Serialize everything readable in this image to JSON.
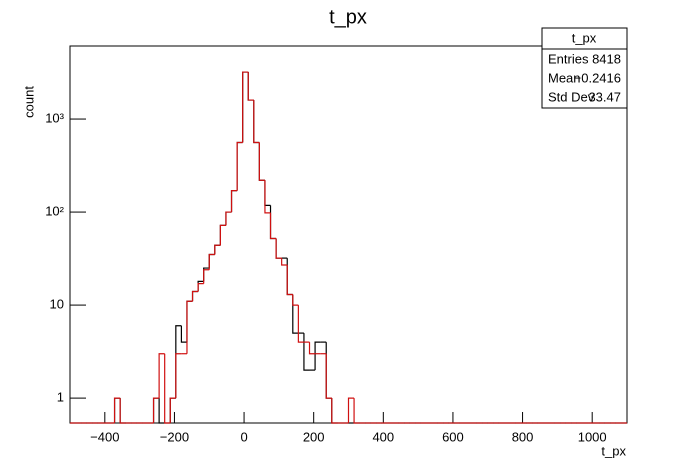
{
  "chart_data": {
    "type": "histogram",
    "title": "t_px",
    "x_label": "t_px",
    "y_label": "count",
    "log_y": true,
    "xlim": [
      -500,
      1100
    ],
    "ylim": [
      0.54,
      6100
    ],
    "xticks": [
      {
        "value": -400,
        "label": "−400"
      },
      {
        "value": -200,
        "label": "−200"
      },
      0,
      200,
      400,
      600,
      800,
      1000
    ],
    "yticks": [
      1,
      10,
      {
        "value": 100,
        "label": "10²"
      },
      {
        "value": 1000,
        "label": "10³"
      }
    ],
    "bins": [
      -500,
      -484,
      -468,
      -452,
      -436,
      -420,
      -404,
      -388,
      -372,
      -356,
      -340,
      -324,
      -308,
      -292,
      -276,
      -260,
      -244,
      -228,
      -212,
      -196,
      -180,
      -164,
      -148,
      -132,
      -116,
      -100,
      -84,
      -68,
      -52,
      -36,
      -20,
      -4,
      12,
      28,
      44,
      60,
      76,
      92,
      108,
      124,
      140,
      156,
      172,
      188,
      204,
      220,
      236,
      252,
      268,
      284,
      300,
      316,
      332,
      348,
      364,
      380,
      396,
      412,
      428,
      444,
      460,
      476,
      492,
      508,
      524,
      540,
      556,
      572,
      588,
      604,
      620,
      636,
      652,
      668,
      684,
      700,
      716,
      732,
      748,
      764,
      780,
      796,
      812,
      828,
      844,
      860,
      876,
      892,
      908,
      924,
      940,
      956,
      972,
      988,
      1004,
      1020,
      1036,
      1052,
      1068,
      1084,
      1100
    ],
    "series": [
      {
        "color": "#000000",
        "values": [
          0,
          0,
          0,
          0,
          0,
          0,
          0,
          0,
          1,
          0,
          0,
          0,
          0,
          0,
          0,
          1,
          0,
          0,
          1,
          6,
          4,
          11,
          14,
          18,
          25,
          35,
          44,
          72,
          100,
          170,
          560,
          3200,
          1600,
          560,
          220,
          118,
          52,
          32,
          32,
          13,
          5,
          5,
          2,
          2,
          4,
          4,
          1,
          0,
          0,
          0,
          0,
          0,
          0,
          0,
          0,
          0,
          0,
          0,
          0,
          0,
          0,
          0,
          0,
          0,
          0,
          0,
          0,
          0,
          0,
          0,
          0,
          0,
          0,
          0,
          0,
          0,
          0,
          0,
          0,
          0,
          0,
          0,
          0,
          0,
          0,
          0,
          0,
          0,
          0,
          0,
          0,
          0,
          0,
          0,
          0,
          0,
          0,
          0,
          0,
          0
        ]
      },
      {
        "color": "#d01010",
        "values": [
          0,
          0,
          0,
          0,
          0,
          0,
          0,
          0,
          1,
          0,
          0,
          0,
          0,
          0,
          0,
          1,
          3,
          0,
          1,
          3,
          3,
          11,
          14,
          17,
          24,
          35,
          44,
          72,
          100,
          170,
          560,
          3200,
          1600,
          560,
          220,
          98,
          52,
          32,
          27,
          13,
          10,
          4,
          4,
          3,
          3,
          3,
          1,
          0,
          0,
          0,
          1,
          0,
          0,
          0,
          0,
          0,
          0,
          0,
          0,
          0,
          0,
          0,
          0,
          0,
          0,
          0,
          0,
          0,
          0,
          0,
          0,
          0,
          0,
          0,
          0,
          0,
          0,
          0,
          0,
          0,
          0,
          0,
          0,
          0,
          0,
          0,
          0,
          0,
          0,
          0,
          0,
          0,
          0,
          0,
          0,
          0,
          0,
          0,
          0,
          0
        ]
      }
    ],
    "stats": {
      "title": "t_px",
      "rows": [
        [
          "Entries",
          "8418"
        ],
        [
          "Mean",
          "−0.2416"
        ],
        [
          "Std Dev",
          "33.47"
        ]
      ]
    }
  }
}
